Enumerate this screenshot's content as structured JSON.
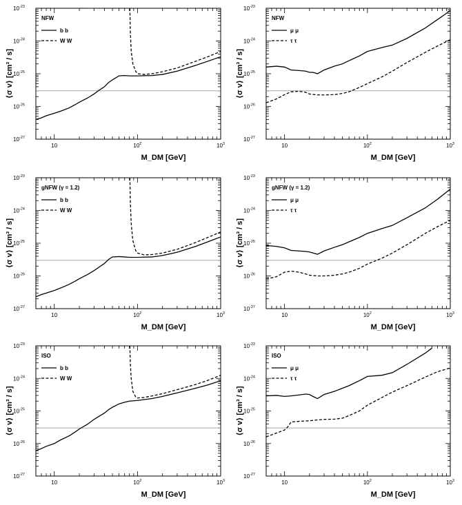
{
  "chart_data": [
    {
      "type": "line",
      "panel": "top-left",
      "title": "NFW",
      "xlabel": "M_DM [GeV]",
      "ylabel": "⟨σ v⟩ [cm³ / s]",
      "x_scale": "log",
      "y_scale": "log",
      "xlim": [
        6,
        1000
      ],
      "ylim": [
        1e-27,
        1e-23
      ],
      "legend_position": "top-left",
      "reference_line_y": 3e-26,
      "series": [
        {
          "name": "b b",
          "style": "solid",
          "x": [
            6,
            7,
            8,
            10,
            12,
            15,
            18,
            20,
            25,
            30,
            35,
            40,
            45,
            50,
            60,
            70,
            80,
            100,
            150,
            200,
            300,
            500,
            700,
            1000
          ],
          "y": [
            4e-27,
            4.5e-27,
            5.2e-27,
            6.2e-27,
            7.2e-27,
            9e-27,
            1.15e-26,
            1.35e-26,
            1.8e-26,
            2.4e-26,
            3.2e-26,
            4e-26,
            5.4e-26,
            6.5e-26,
            8.6e-26,
            8.8e-26,
            8.6e-26,
            8.6e-26,
            8.8e-26,
            9.5e-26,
            1.2e-25,
            1.8e-25,
            2.4e-25,
            3.3e-25
          ]
        },
        {
          "name": "W W",
          "style": "dashed",
          "x": [
            81,
            82,
            84,
            88,
            95,
            100,
            120,
            150,
            200,
            300,
            500,
            700,
            1000
          ],
          "y": [
            1e-23,
            2e-24,
            5e-25,
            2e-25,
            1.2e-25,
            1e-25,
            9.5e-26,
            1e-25,
            1.15e-25,
            1.5e-25,
            2.4e-25,
            3.3e-25,
            4.8e-25
          ]
        }
      ],
      "x_ticks": [
        {
          "base": "10",
          "exp": ""
        },
        {
          "base": "10",
          "exp": "2"
        },
        {
          "base": "10",
          "exp": "3"
        }
      ],
      "y_ticks": [
        {
          "base": "10",
          "exp": "-27"
        },
        {
          "base": "10",
          "exp": "-26"
        },
        {
          "base": "10",
          "exp": "-25"
        },
        {
          "base": "10",
          "exp": "-24"
        },
        {
          "base": "10",
          "exp": "-23"
        }
      ]
    },
    {
      "type": "line",
      "panel": "top-right",
      "title": "NFW",
      "xlabel": "M_DM [GeV]",
      "ylabel": "⟨σ v⟩ [cm³ / s]",
      "x_scale": "log",
      "y_scale": "log",
      "xlim": [
        6,
        1000
      ],
      "ylim": [
        1e-27,
        1e-23
      ],
      "legend_position": "top-left",
      "reference_line_y": 3e-26,
      "series": [
        {
          "name": "μ μ",
          "style": "solid",
          "x": [
            6,
            8,
            10,
            12,
            15,
            18,
            20,
            22,
            25,
            30,
            40,
            50,
            60,
            80,
            100,
            150,
            200,
            300,
            500,
            700,
            1000
          ],
          "y": [
            1.6e-25,
            1.7e-25,
            1.6e-25,
            1.3e-25,
            1.25e-25,
            1.2e-25,
            1.1e-25,
            1.1e-25,
            1e-25,
            1.3e-25,
            1.7e-25,
            2e-25,
            2.5e-25,
            3.5e-25,
            4.8e-25,
            6.3e-25,
            7.5e-25,
            1.2e-24,
            2.5e-24,
            4.5e-24,
            8.5e-24
          ]
        },
        {
          "name": "τ τ",
          "style": "dashed",
          "x": [
            6,
            8,
            10,
            12,
            15,
            18,
            20,
            25,
            30,
            40,
            50,
            60,
            80,
            100,
            150,
            200,
            300,
            500,
            700,
            1000
          ],
          "y": [
            1.3e-26,
            1.7e-26,
            2.3e-26,
            2.8e-26,
            2.9e-26,
            2.7e-26,
            2.4e-26,
            2.25e-26,
            2.25e-26,
            2.3e-26,
            2.5e-26,
            2.8e-26,
            3.8e-26,
            5e-26,
            8e-26,
            1.2e-25,
            2.2e-25,
            4.5e-25,
            7e-25,
            1.1e-24
          ]
        }
      ],
      "x_ticks": [
        {
          "base": "10",
          "exp": ""
        },
        {
          "base": "10",
          "exp": "2"
        },
        {
          "base": "10",
          "exp": "3"
        }
      ],
      "y_ticks": [
        {
          "base": "10",
          "exp": "-27"
        },
        {
          "base": "10",
          "exp": "-26"
        },
        {
          "base": "10",
          "exp": "-25"
        },
        {
          "base": "10",
          "exp": "-24"
        },
        {
          "base": "10",
          "exp": "-23"
        }
      ]
    },
    {
      "type": "line",
      "panel": "middle-left",
      "title": "gNFW (γ = 1.2)",
      "xlabel": "M_DM [GeV]",
      "ylabel": "⟨σ v⟩ [cm³ / s]",
      "x_scale": "log",
      "y_scale": "log",
      "xlim": [
        6,
        1000
      ],
      "ylim": [
        1e-27,
        1e-23
      ],
      "legend_position": "top-left",
      "reference_line_y": 3e-26,
      "series": [
        {
          "name": "b b",
          "style": "solid",
          "x": [
            6,
            7,
            8,
            10,
            12,
            15,
            18,
            20,
            25,
            30,
            35,
            40,
            45,
            50,
            60,
            70,
            80,
            100,
            150,
            200,
            300,
            500,
            700,
            1000
          ],
          "y": [
            2.3e-27,
            2.7e-27,
            3e-27,
            3.6e-27,
            4.3e-27,
            5.5e-27,
            7e-27,
            8.2e-27,
            1.1e-26,
            1.45e-26,
            1.9e-26,
            2.4e-26,
            3.2e-26,
            3.8e-26,
            3.9e-26,
            3.8e-26,
            3.7e-26,
            3.7e-26,
            3.8e-26,
            4.2e-26,
            5.3e-26,
            8e-26,
            1.1e-25,
            1.55e-25
          ]
        },
        {
          "name": "W W",
          "style": "dashed",
          "x": [
            81,
            82,
            84,
            88,
            95,
            100,
            120,
            150,
            200,
            300,
            500,
            700,
            1000
          ],
          "y": [
            1e-23,
            2e-24,
            4e-25,
            1.2e-25,
            6e-26,
            5e-26,
            4.4e-26,
            4.5e-26,
            5e-26,
            6.5e-26,
            1.05e-25,
            1.5e-25,
            2.2e-25
          ]
        }
      ],
      "x_ticks": [
        {
          "base": "10",
          "exp": ""
        },
        {
          "base": "10",
          "exp": "2"
        },
        {
          "base": "10",
          "exp": "3"
        }
      ],
      "y_ticks": [
        {
          "base": "10",
          "exp": "-27"
        },
        {
          "base": "10",
          "exp": "-26"
        },
        {
          "base": "10",
          "exp": "-25"
        },
        {
          "base": "10",
          "exp": "-24"
        },
        {
          "base": "10",
          "exp": "-23"
        }
      ]
    },
    {
      "type": "line",
      "panel": "middle-right",
      "title": "gNFW (γ = 1.2)",
      "xlabel": "M_DM [GeV]",
      "ylabel": "⟨σ v⟩ [cm³ / s]",
      "x_scale": "log",
      "y_scale": "log",
      "xlim": [
        6,
        1000
      ],
      "ylim": [
        1e-27,
        1e-23
      ],
      "legend_position": "top-left",
      "reference_line_y": 3e-26,
      "series": [
        {
          "name": "μ μ",
          "style": "solid",
          "x": [
            6,
            8,
            10,
            12,
            15,
            18,
            20,
            25,
            30,
            40,
            50,
            60,
            80,
            100,
            150,
            200,
            300,
            500,
            700,
            1000
          ],
          "y": [
            8.5e-26,
            8e-26,
            7.2e-26,
            6e-26,
            5.8e-26,
            5.6e-26,
            5.4e-26,
            4.6e-26,
            5.8e-26,
            7.5e-26,
            9e-26,
            1.1e-25,
            1.5e-25,
            2e-25,
            2.8e-25,
            3.5e-25,
            6e-25,
            1.2e-24,
            2.2e-24,
            4.5e-24
          ]
        },
        {
          "name": "τ τ",
          "style": "dashed",
          "x": [
            6,
            8,
            10,
            12,
            15,
            18,
            20,
            25,
            30,
            40,
            50,
            60,
            80,
            100,
            150,
            200,
            300,
            500,
            700,
            1000
          ],
          "y": [
            8e-27,
            9.5e-27,
            1.3e-26,
            1.4e-26,
            1.3e-26,
            1.15e-26,
            1.05e-26,
            1e-26,
            1e-26,
            1.05e-26,
            1.15e-26,
            1.3e-26,
            1.7e-26,
            2.3e-26,
            3.5e-26,
            5e-26,
            9e-26,
            2e-25,
            3.2e-25,
            5e-25
          ]
        }
      ],
      "x_ticks": [
        {
          "base": "10",
          "exp": ""
        },
        {
          "base": "10",
          "exp": "2"
        },
        {
          "base": "10",
          "exp": "3"
        }
      ],
      "y_ticks": [
        {
          "base": "10",
          "exp": "-27"
        },
        {
          "base": "10",
          "exp": "-26"
        },
        {
          "base": "10",
          "exp": "-25"
        },
        {
          "base": "10",
          "exp": "-24"
        },
        {
          "base": "10",
          "exp": "-23"
        }
      ]
    },
    {
      "type": "line",
      "panel": "bottom-left",
      "title": "ISO",
      "xlabel": "M_DM [GeV]",
      "ylabel": "⟨σ v⟩ [cm³ / s]",
      "x_scale": "log",
      "y_scale": "log",
      "xlim": [
        6,
        1000
      ],
      "ylim": [
        1e-27,
        1e-23
      ],
      "legend_position": "top-left",
      "reference_line_y": 3e-26,
      "series": [
        {
          "name": "b b",
          "style": "solid",
          "x": [
            6,
            7,
            8,
            10,
            12,
            15,
            18,
            20,
            25,
            30,
            35,
            40,
            45,
            50,
            60,
            70,
            80,
            100,
            150,
            200,
            300,
            500,
            700,
            1000
          ],
          "y": [
            6e-27,
            7e-27,
            8.2e-27,
            1e-26,
            1.3e-26,
            1.7e-26,
            2.3e-26,
            2.8e-26,
            3.9e-26,
            5.5e-26,
            7e-26,
            8.6e-26,
            1.1e-25,
            1.3e-25,
            1.65e-25,
            1.85e-25,
            2e-25,
            2.1e-25,
            2.4e-25,
            2.8e-25,
            3.6e-25,
            5e-25,
            6.3e-25,
            8.5e-25
          ]
        },
        {
          "name": "W W",
          "style": "dashed",
          "x": [
            81,
            82,
            84,
            88,
            95,
            100,
            120,
            150,
            200,
            300,
            500,
            700,
            1000
          ],
          "y": [
            1e-23,
            3e-24,
            1e-24,
            4e-25,
            2.7e-25,
            2.5e-25,
            2.6e-25,
            2.9e-25,
            3.4e-25,
            4.5e-25,
            6.5e-25,
            8.7e-25,
            1.25e-24
          ]
        }
      ],
      "x_ticks": [
        {
          "base": "10",
          "exp": ""
        },
        {
          "base": "10",
          "exp": "2"
        },
        {
          "base": "10",
          "exp": "3"
        }
      ],
      "y_ticks": [
        {
          "base": "10",
          "exp": "-27"
        },
        {
          "base": "10",
          "exp": "-26"
        },
        {
          "base": "10",
          "exp": "-25"
        },
        {
          "base": "10",
          "exp": "-24"
        },
        {
          "base": "10",
          "exp": "-23"
        }
      ]
    },
    {
      "type": "line",
      "panel": "bottom-right",
      "title": "ISO",
      "xlabel": "M_DM [GeV]",
      "ylabel": "⟨σ v⟩ [cm³ / s]",
      "x_scale": "log",
      "y_scale": "log",
      "xlim": [
        6,
        1000
      ],
      "ylim": [
        1e-27,
        1e-23
      ],
      "legend_position": "top-left",
      "reference_line_y": 3e-26,
      "series": [
        {
          "name": "μ μ",
          "style": "solid",
          "x": [
            6,
            8,
            10,
            12,
            15,
            18,
            20,
            22,
            25,
            30,
            40,
            50,
            60,
            80,
            100,
            150,
            200,
            300,
            500,
            600
          ],
          "y": [
            2.9e-25,
            3e-25,
            2.8e-25,
            2.9e-25,
            3.1e-25,
            3.3e-25,
            3.2e-25,
            2.8e-25,
            2.4e-25,
            3.2e-25,
            4e-25,
            5e-25,
            6e-25,
            8.5e-25,
            1.15e-24,
            1.25e-24,
            1.5e-24,
            2.7e-24,
            6e-24,
            8.5e-24
          ]
        },
        {
          "name": "τ τ",
          "style": "dashed",
          "x": [
            6,
            8,
            10,
            11,
            12,
            15,
            20,
            25,
            30,
            40,
            50,
            60,
            80,
            100,
            150,
            200,
            300,
            500,
            700,
            1000
          ],
          "y": [
            1.6e-26,
            2.1e-26,
            2.6e-26,
            3.3e-26,
            4.6e-26,
            4.8e-26,
            5e-26,
            5.3e-26,
            5.5e-26,
            5.6e-26,
            6e-26,
            7.2e-26,
            1e-25,
            1.5e-25,
            2.6e-25,
            3.8e-25,
            6e-25,
            1.1e-24,
            1.6e-24,
            2.1e-24
          ]
        }
      ],
      "x_ticks": [
        {
          "base": "10",
          "exp": ""
        },
        {
          "base": "10",
          "exp": "2"
        },
        {
          "base": "10",
          "exp": "3"
        }
      ],
      "y_ticks": [
        {
          "base": "10",
          "exp": "-27"
        },
        {
          "base": "10",
          "exp": "-26"
        },
        {
          "base": "10",
          "exp": "-25"
        },
        {
          "base": "10",
          "exp": "-24"
        },
        {
          "base": "10",
          "exp": "-23"
        }
      ]
    }
  ]
}
